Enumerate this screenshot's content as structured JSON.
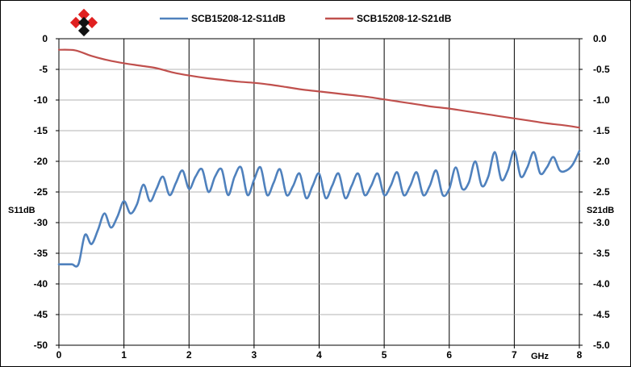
{
  "chart_data": {
    "type": "line",
    "title": "",
    "xlabel": "GHz",
    "ylabel_left": "S11dB",
    "ylabel_right": "S21dB",
    "xlim": [
      0,
      8
    ],
    "ylim_left": [
      -50,
      0
    ],
    "ylim_right": [
      -5.0,
      0.0
    ],
    "x_ticks": [
      "0",
      "1",
      "2",
      "3",
      "4",
      "5",
      "6",
      "7",
      "8"
    ],
    "y_ticks_left": [
      "0",
      "-5",
      "-10",
      "-15",
      "-20",
      "-25",
      "-30",
      "-35",
      "-40",
      "-45",
      "-50"
    ],
    "y_ticks_right": [
      "0.0",
      "-0.5",
      "-1.0",
      "-1.5",
      "-2.0",
      "-2.5",
      "-3.0",
      "-3.5",
      "-4.0",
      "-4.5",
      "-5.0"
    ],
    "grid": "vertical-major",
    "legend": "top",
    "series": [
      {
        "name": "SCB15208-12-S11dB",
        "axis": "left",
        "color": "#4f81bd",
        "x": [
          0,
          0.1,
          0.2,
          0.3,
          0.4,
          0.5,
          0.6,
          0.7,
          0.8,
          0.9,
          1.0,
          1.1,
          1.2,
          1.3,
          1.4,
          1.5,
          1.6,
          1.7,
          1.8,
          1.9,
          2.0,
          2.1,
          2.2,
          2.3,
          2.4,
          2.5,
          2.6,
          2.7,
          2.8,
          2.9,
          3.0,
          3.1,
          3.2,
          3.3,
          3.4,
          3.5,
          3.6,
          3.7,
          3.8,
          3.9,
          4.0,
          4.1,
          4.2,
          4.3,
          4.4,
          4.5,
          4.6,
          4.7,
          4.8,
          4.9,
          5.0,
          5.1,
          5.2,
          5.3,
          5.4,
          5.5,
          5.6,
          5.7,
          5.8,
          5.9,
          6.0,
          6.1,
          6.2,
          6.3,
          6.4,
          6.5,
          6.6,
          6.7,
          6.8,
          6.9,
          7.0,
          7.1,
          7.2,
          7.3,
          7.4,
          7.5,
          7.6,
          7.7,
          7.8,
          7.9,
          8.0
        ],
        "values": [
          -36.8,
          -36.8,
          -36.8,
          -36.8,
          -32.0,
          -33.5,
          -31.2,
          -28.5,
          -30.8,
          -29.0,
          -26.5,
          -28.5,
          -27.0,
          -23.8,
          -26.5,
          -24.5,
          -22.5,
          -25.5,
          -23.5,
          -21.5,
          -24.5,
          -22.5,
          -21.3,
          -25.0,
          -22.5,
          -21.3,
          -25.5,
          -22.5,
          -21.0,
          -25.5,
          -23.0,
          -21.0,
          -25.5,
          -23.5,
          -21.3,
          -25.5,
          -24.0,
          -22.0,
          -26.0,
          -24.0,
          -22.0,
          -26.0,
          -24.0,
          -22.0,
          -26.0,
          -24.0,
          -22.0,
          -25.5,
          -24.0,
          -22.0,
          -25.5,
          -24.0,
          -21.8,
          -25.5,
          -24.0,
          -21.8,
          -25.5,
          -24.0,
          -21.5,
          -25.5,
          -24.5,
          -21.0,
          -24.5,
          -23.5,
          -20.0,
          -24.0,
          -22.5,
          -18.5,
          -23.0,
          -21.5,
          -18.3,
          -22.5,
          -21.0,
          -18.5,
          -22.0,
          -21.0,
          -19.3,
          -21.5,
          -21.5,
          -20.5,
          -18.3
        ]
      },
      {
        "name": "SCB15208-12-S21dB",
        "axis": "right",
        "color": "#c0504d",
        "x": [
          0,
          0.25,
          0.5,
          0.75,
          1.0,
          1.25,
          1.5,
          1.75,
          2.0,
          2.25,
          2.5,
          2.75,
          3.0,
          3.25,
          3.5,
          3.75,
          4.0,
          4.25,
          4.5,
          4.75,
          5.0,
          5.25,
          5.5,
          5.75,
          6.0,
          6.25,
          6.5,
          6.75,
          7.0,
          7.25,
          7.5,
          7.75,
          8.0
        ],
        "values": [
          -0.18,
          -0.19,
          -0.28,
          -0.35,
          -0.4,
          -0.44,
          -0.48,
          -0.55,
          -0.6,
          -0.64,
          -0.67,
          -0.7,
          -0.72,
          -0.75,
          -0.79,
          -0.83,
          -0.86,
          -0.89,
          -0.92,
          -0.95,
          -0.99,
          -1.03,
          -1.07,
          -1.11,
          -1.14,
          -1.18,
          -1.22,
          -1.26,
          -1.3,
          -1.34,
          -1.38,
          -1.41,
          -1.45
        ]
      }
    ]
  }
}
